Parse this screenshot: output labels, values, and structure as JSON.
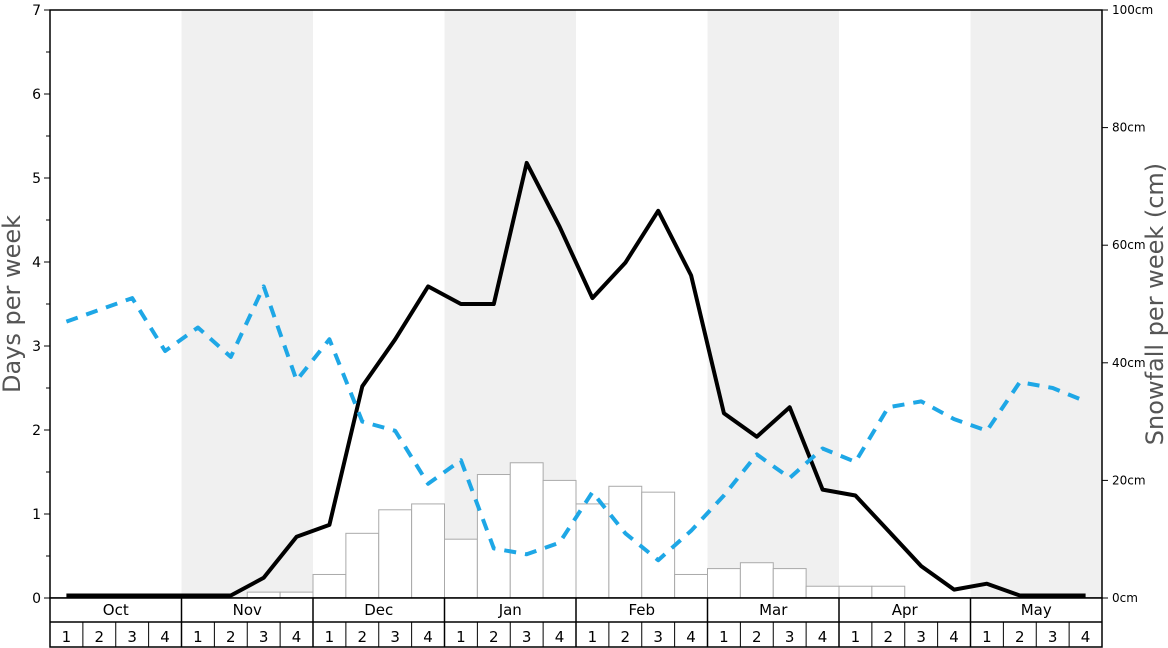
{
  "chart_data": {
    "type": "bar",
    "colors": {
      "shade": "#f0f0f0",
      "bar_fill": "#ffffff",
      "bar_stroke": "#aaaaaa",
      "line_days": "#000000",
      "line_dashed": "#1ea7e6",
      "axis": "#000000"
    },
    "left_axis": {
      "label": "Days per week",
      "ylim": [
        0,
        7
      ],
      "ticks": [
        "0",
        "1",
        "2",
        "3",
        "4",
        "5",
        "6",
        "7"
      ]
    },
    "right_axis": {
      "label": "Snowfall per week (cm)",
      "ylim": [
        0,
        100
      ],
      "ticks": [
        "0cm",
        "20cm",
        "40cm",
        "60cm",
        "80cm",
        "100cm"
      ]
    },
    "months": [
      "Oct",
      "Nov",
      "Dec",
      "Jan",
      "Feb",
      "Mar",
      "Apr",
      "May"
    ],
    "week_labels": [
      "1",
      "2",
      "3",
      "4",
      "1",
      "2",
      "3",
      "4",
      "1",
      "2",
      "3",
      "4",
      "1",
      "2",
      "3",
      "4",
      "1",
      "2",
      "3",
      "4",
      "1",
      "2",
      "3",
      "4",
      "1",
      "2",
      "3",
      "4",
      "1",
      "2",
      "3",
      "4"
    ],
    "snowfall_cm": [
      0,
      0,
      0,
      0,
      0,
      0,
      1,
      1,
      4,
      11,
      15,
      16,
      10,
      21,
      23,
      20,
      16,
      19,
      18,
      4,
      5,
      6,
      5,
      2,
      2,
      2,
      0,
      0,
      0,
      0,
      0,
      0
    ],
    "series": [
      {
        "style": "solid",
        "axis": "left",
        "values": [
          0.03,
          0.03,
          0.03,
          0.03,
          0.03,
          0.03,
          0.24,
          0.73,
          0.87,
          2.52,
          3.08,
          3.71,
          3.5,
          3.5,
          5.18,
          4.42,
          3.57,
          3.99,
          4.61,
          3.84,
          2.2,
          1.92,
          2.27,
          1.29,
          1.22,
          0.8,
          0.38,
          0.1,
          0.17,
          0.03,
          0.03,
          0.03
        ]
      },
      {
        "style": "dashed",
        "axis": "left",
        "values": [
          3.29,
          3.43,
          3.57,
          2.94,
          3.22,
          2.87,
          3.71,
          2.59,
          3.08,
          2.1,
          1.99,
          1.36,
          1.64,
          0.59,
          0.52,
          0.66,
          1.26,
          0.77,
          0.45,
          0.8,
          1.22,
          1.71,
          1.43,
          1.78,
          1.62,
          2.27,
          2.34,
          2.13,
          1.99,
          2.57,
          2.5,
          2.34
        ]
      }
    ]
  }
}
